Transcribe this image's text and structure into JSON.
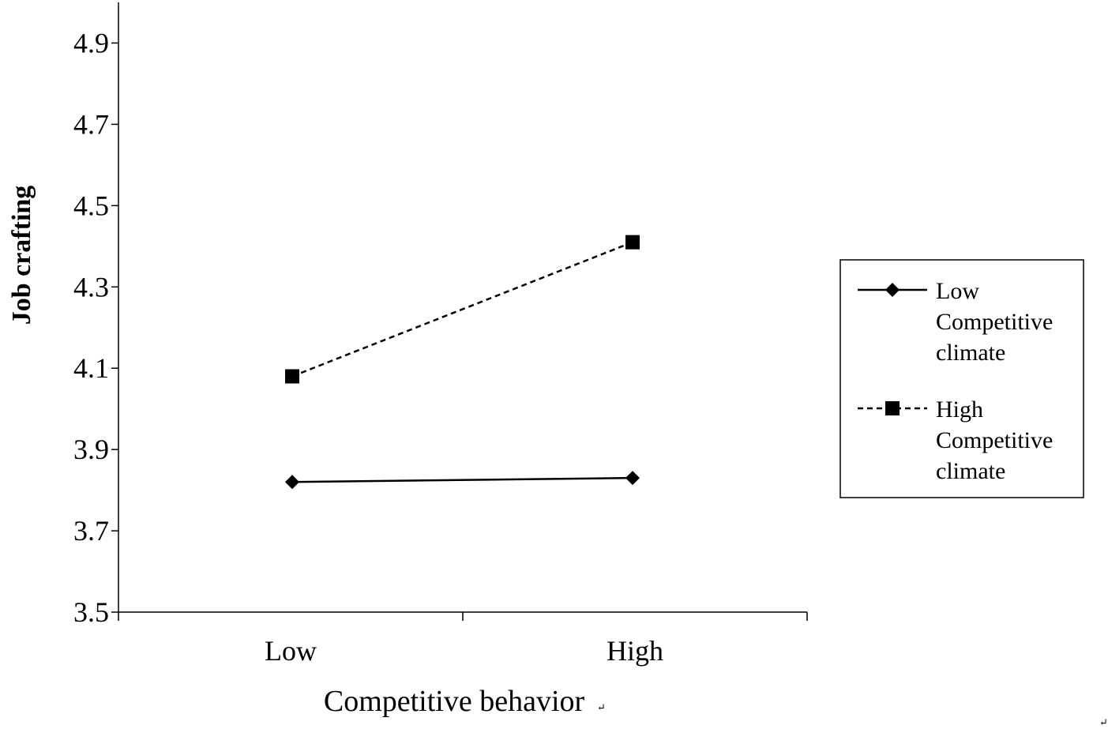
{
  "chart_data": {
    "type": "line",
    "title": "",
    "xlabel": "Competitive behavior",
    "ylabel": "Job crafting",
    "categories": [
      "Low",
      "High"
    ],
    "yticks": [
      "3.5",
      "3.7",
      "3.9",
      "4.1",
      "4.3",
      "4.5",
      "4.7",
      "4.9"
    ],
    "ylim": [
      3.5,
      5.0
    ],
    "grid": false,
    "legend_position": "right",
    "series": [
      {
        "name": "Low Competitive climate",
        "legend_lines": [
          "Low",
          "Competitive",
          "climate"
        ],
        "values": [
          3.82,
          3.83
        ],
        "line_style": "solid",
        "marker": "diamond",
        "color": "#000000"
      },
      {
        "name": "High Competitive climate",
        "legend_lines": [
          "High",
          "Competitive",
          "climate"
        ],
        "values": [
          4.08,
          4.41
        ],
        "line_style": "dashed",
        "marker": "square",
        "color": "#000000"
      }
    ]
  },
  "marks": {
    "paragraph_mark": "↵"
  }
}
